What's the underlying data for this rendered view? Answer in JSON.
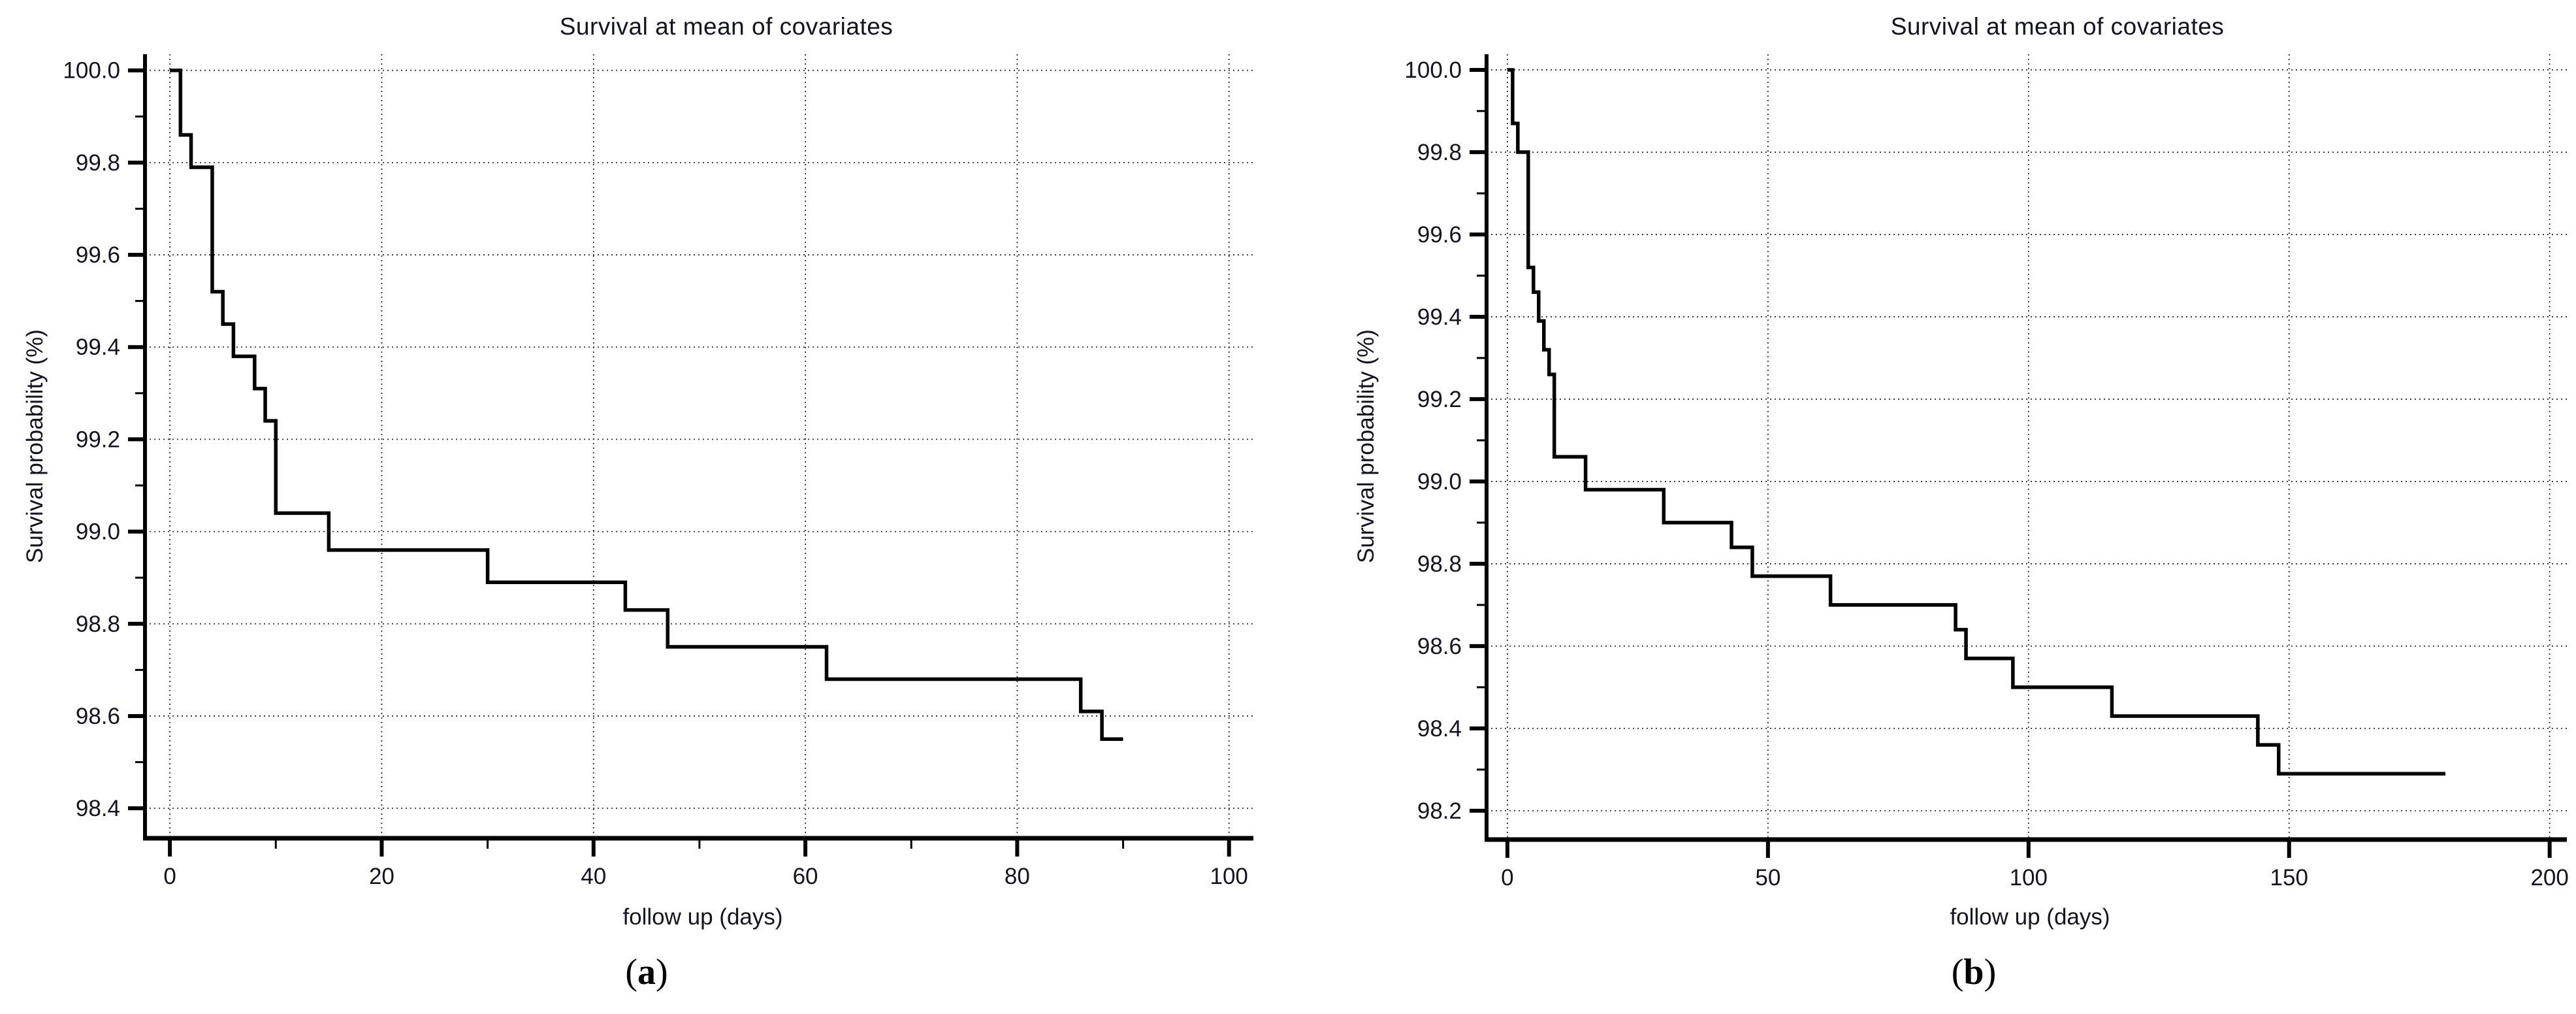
{
  "figure": {
    "background": "#ffffff",
    "text_color": "#14141e",
    "curve_color": "#000000",
    "axis_color": "#000000",
    "grid_color": "#2e2e2e"
  },
  "chart_data": [
    {
      "type": "line",
      "subtype": "kaplan-meier-step",
      "title": "Survival at mean of covariates",
      "xlabel": "follow up (days)",
      "ylabel": "Survival probability (%)",
      "panel_label": {
        "open": "(",
        "letter": "a",
        "close": ")"
      },
      "x_days": [
        0,
        1,
        2,
        4,
        5,
        6,
        8,
        9,
        10,
        15,
        30,
        43,
        47,
        62,
        86,
        88
      ],
      "y_percent": [
        100.0,
        99.86,
        99.79,
        99.52,
        99.45,
        99.38,
        99.31,
        99.24,
        99.04,
        98.96,
        98.89,
        98.83,
        98.75,
        98.68,
        98.61,
        98.55
      ],
      "end_day": 90,
      "xlim": [
        -2.35,
        102.3
      ],
      "ylim": [
        98.335,
        100.035
      ],
      "xticks_major": [
        0,
        20,
        40,
        60,
        80,
        100
      ],
      "xticks_minor": [
        10,
        30,
        50,
        70,
        90
      ],
      "ytick_label_max": 100.0,
      "ytick_major_step": 0.2,
      "ytick_minor_step": 0.1,
      "grid": "dotted at major ticks, both axes",
      "legend": "none"
    },
    {
      "type": "line",
      "subtype": "kaplan-meier-step",
      "title": "Survival at mean of covariates",
      "xlabel": "follow up (days)",
      "ylabel": "Survival probability (%)",
      "panel_label": {
        "open": "(",
        "letter": "b",
        "close": ")"
      },
      "x_days": [
        0,
        1,
        2,
        4,
        5,
        6,
        7,
        8,
        9,
        15,
        30,
        43,
        47,
        62,
        86,
        88,
        97,
        116,
        144,
        148
      ],
      "y_percent": [
        100.0,
        99.87,
        99.8,
        99.52,
        99.46,
        99.39,
        99.32,
        99.26,
        99.06,
        98.98,
        98.9,
        98.84,
        98.77,
        98.7,
        98.64,
        98.57,
        98.5,
        98.43,
        98.36,
        98.29
      ],
      "end_day": 180,
      "xlim": [
        -4.0,
        203.3
      ],
      "ylim": [
        98.13,
        100.038
      ],
      "xticks_major": [
        0,
        50,
        100,
        150,
        200
      ],
      "xticks_minor": [],
      "ytick_label_max": 100.0,
      "ytick_major_step": 0.2,
      "ytick_minor_step": 0.1,
      "grid": "dotted at major ticks, both axes",
      "legend": "none"
    }
  ]
}
